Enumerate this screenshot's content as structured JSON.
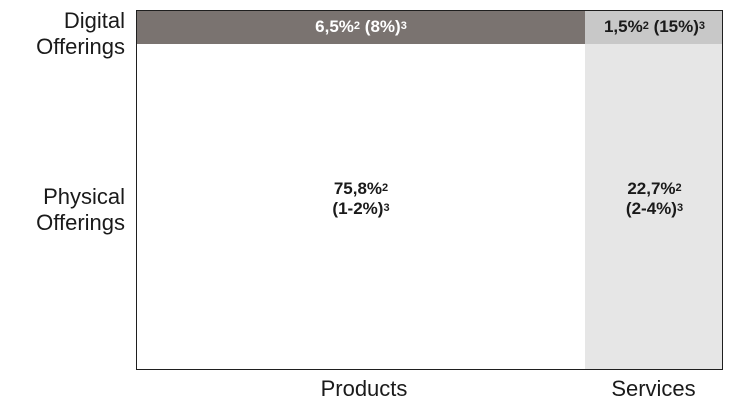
{
  "colors": {
    "digital_products_fill": "#7a7370",
    "digital_services_fill": "#c8c8c8",
    "physical_products_fill": "#ffffff",
    "physical_services_fill": "#e6e6e6",
    "digital_products_text": "#ffffff",
    "dark_text": "#1a1a1a",
    "border": "#1f1f1f"
  },
  "chart_data": {
    "type": "table",
    "rows": [
      "Digital\nOfferings",
      "Physical\nOfferings"
    ],
    "columns": [
      "Products",
      "Services"
    ],
    "cells": [
      {
        "row": "Digital Offerings",
        "column": "Products",
        "share_pct": 6.5,
        "growth": "8%",
        "share_text": "6,5%",
        "share_sup": "2",
        "growth_text": "(8%)",
        "growth_sup": "3"
      },
      {
        "row": "Digital Offerings",
        "column": "Services",
        "share_pct": 1.5,
        "growth": "15%",
        "share_text": "1,5%",
        "share_sup": "2",
        "growth_text": "(15%)",
        "growth_sup": "3"
      },
      {
        "row": "Physical Offerings",
        "column": "Products",
        "share_pct": 75.8,
        "growth": "1-2%",
        "share_text": "75,8%",
        "share_sup": "2",
        "growth_text": "(1-2%)",
        "growth_sup": "3"
      },
      {
        "row": "Physical Offerings",
        "column": "Services",
        "share_pct": 22.7,
        "growth": "2-4%",
        "share_text": "22,7%",
        "share_sup": "2",
        "growth_text": "(2-4%)",
        "growth_sup": "3"
      }
    ],
    "row_labels": {
      "digital_line1": "Digital",
      "digital_line2": "Offerings",
      "physical_line1": "Physical",
      "physical_line2": "Offerings"
    },
    "column_labels": {
      "products": "Products",
      "services": "Services"
    }
  }
}
